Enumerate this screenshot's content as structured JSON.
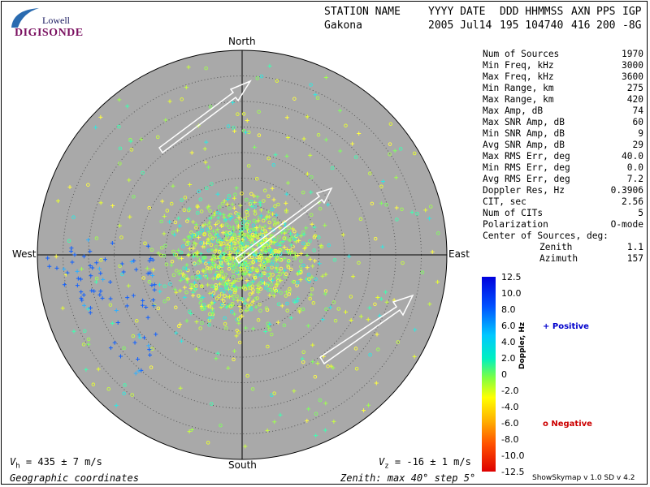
{
  "logo": {
    "line1": "Lowell",
    "line2": "DIGISONDE"
  },
  "header": {
    "labels": [
      "STATION NAME",
      "YYYY DATE",
      "DDD HHMMSS",
      "AXN",
      "PPS",
      "IGP"
    ],
    "values": [
      "Gakona",
      "2005 Jul14",
      "195 104740",
      "416",
      "200",
      "-8G"
    ]
  },
  "compass": {
    "north": "North",
    "south": "South",
    "east": "East",
    "west": "West"
  },
  "stats": [
    {
      "label": "Num of Sources",
      "value": "1970"
    },
    {
      "label": "Min Freq, kHz",
      "value": "3000"
    },
    {
      "label": "Max Freq, kHz",
      "value": "3600"
    },
    {
      "label": "Min Range, km",
      "value": "275"
    },
    {
      "label": "Max Range, km",
      "value": "420"
    },
    {
      "label": "Max Amp, dB",
      "value": "74"
    },
    {
      "label": "Max SNR Amp, dB",
      "value": "60"
    },
    {
      "label": "Min SNR Amp, dB",
      "value": "9"
    },
    {
      "label": "Avg SNR Amp, dB",
      "value": "29"
    },
    {
      "label": "Max RMS Err, deg",
      "value": "40.0"
    },
    {
      "label": "Min RMS Err, deg",
      "value": "0.0"
    },
    {
      "label": "Avg RMS Err, deg",
      "value": "7.2"
    },
    {
      "label": "Doppler Res, Hz",
      "value": "0.3906"
    },
    {
      "label": "CIT, sec",
      "value": "2.56"
    },
    {
      "label": "Num of CITs",
      "value": "5"
    },
    {
      "label": "Polarization",
      "value": "O-mode"
    }
  ],
  "center_of_sources": {
    "title": "Center of Sources, deg:",
    "zenith_label": "Zenith",
    "zenith_value": "1.1",
    "azimuth_label": "Azimuth",
    "azimuth_value": "157"
  },
  "colorbar": {
    "ticks": [
      "12.5",
      "10.0",
      "8.0",
      "6.0",
      "4.0",
      "2.0",
      "0",
      "-2.0",
      "-4.0",
      "-6.0",
      "-8.0",
      "-10.0",
      "-12.5"
    ],
    "axis_label": "Doppler, Hz"
  },
  "legend": {
    "positive": "Positive",
    "negative": "Negative",
    "positive_color": "#0000cc",
    "negative_color": "#cc0000"
  },
  "footer": {
    "vh": "= 435 ± 7 m/s",
    "vz": "= -16 ± 1 m/s",
    "coords": "Geographic coordinates",
    "zenith": "Zenith: max 40°  step 5°",
    "credit": "ShowSkymap v 1.0   SD v 4.2"
  },
  "colors": {
    "disc": "#a9a9a9",
    "arrow": "#ffffff"
  }
}
